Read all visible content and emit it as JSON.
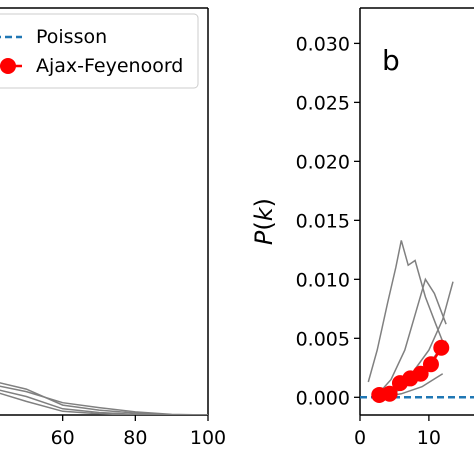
{
  "legend": {
    "items": [
      {
        "label": "Poisson",
        "style": "dashed",
        "color": "#1f77b4"
      },
      {
        "label": "Ajax-Feyenoord",
        "style": "line-marker",
        "color": "#ff0000"
      }
    ]
  },
  "chart_data": [
    {
      "type": "line",
      "panel_letter": "",
      "xlim": [
        40,
        100
      ],
      "x_ticks": [
        "60",
        "80",
        "100"
      ],
      "ylim": [
        0,
        0.033
      ],
      "y_ticks": [],
      "xlabel": "",
      "ylabel": "",
      "grid": false,
      "legend_position": "top-right",
      "series": [
        {
          "style": "gray",
          "color": "#808080",
          "x": [
            40,
            50,
            60,
            70,
            80,
            90,
            100
          ],
          "y": [
            0.0025,
            0.0019,
            0.001,
            0.0006,
            0.00025,
            5e-05,
            0.0
          ]
        },
        {
          "style": "gray",
          "color": "#808080",
          "x": [
            40,
            50,
            60,
            70,
            80,
            90,
            100
          ],
          "y": [
            0.0028,
            0.0021,
            0.0008,
            0.0004,
            0.00015,
            0.0,
            0.0
          ]
        },
        {
          "style": "gray",
          "color": "#808080",
          "x": [
            40,
            50,
            60,
            70,
            80,
            90,
            100
          ],
          "y": [
            0.0022,
            0.0015,
            0.0005,
            0.0002,
            5e-05,
            0.0,
            0.0
          ]
        },
        {
          "style": "gray",
          "color": "#808080",
          "x": [
            40,
            50,
            60,
            70,
            80,
            90,
            100
          ],
          "y": [
            0.002,
            0.0011,
            0.0003,
            0.0001,
            0.0,
            0.0,
            0.0
          ]
        }
      ]
    },
    {
      "type": "line",
      "panel_letter": "b",
      "xlim": [
        0,
        18
      ],
      "x_ticks": [
        "0",
        "10"
      ],
      "ylim": [
        -0.0015,
        0.033
      ],
      "y_ticks": [
        "0.000",
        "0.005",
        "0.010",
        "0.015",
        "0.020",
        "0.025",
        "0.030"
      ],
      "xlabel": "",
      "ylabel": "P(k)",
      "grid": false,
      "series": [
        {
          "style": "dashed",
          "color": "#1f77b4",
          "x": [
            0,
            18
          ],
          "y": [
            0,
            0
          ]
        },
        {
          "style": "gray",
          "color": "#808080",
          "x": [
            1.2,
            2.5,
            4.0,
            5.2,
            6.0,
            7.0,
            8.0,
            9.5,
            11.0,
            12.5
          ],
          "y": [
            0.0013,
            0.004,
            0.008,
            0.011,
            0.0133,
            0.0112,
            0.0116,
            0.0085,
            0.0062,
            0.004
          ]
        },
        {
          "style": "gray",
          "color": "#808080",
          "x": [
            2.5,
            4.5,
            6.5,
            8.0,
            9.5,
            10.8,
            12.5
          ],
          "y": [
            0.0002,
            0.0015,
            0.004,
            0.007,
            0.01,
            0.0088,
            0.0062
          ]
        },
        {
          "style": "gray",
          "color": "#808080",
          "x": [
            2.5,
            5.0,
            7.5,
            10.0,
            12.0,
            13.5
          ],
          "y": [
            0.0001,
            0.0006,
            0.002,
            0.004,
            0.0066,
            0.0098
          ]
        },
        {
          "style": "gray",
          "color": "#808080",
          "x": [
            2.5,
            5.0,
            7.5,
            10.0,
            12.5
          ],
          "y": [
            0.0,
            0.0004,
            0.0012,
            0.0028,
            0.0048
          ]
        },
        {
          "style": "gray",
          "color": "#808080",
          "x": [
            3.0,
            6.0,
            9.0,
            12.0
          ],
          "y": [
            0.0,
            0.0003,
            0.0009,
            0.002
          ]
        },
        {
          "style": "marker",
          "name": "Ajax-Feyenoord",
          "color": "#ff0000",
          "x": [
            2.8,
            4.3,
            5.8,
            7.3,
            8.8,
            10.3,
            11.8
          ],
          "y": [
            0.0002,
            0.0003,
            0.0012,
            0.0016,
            0.002,
            0.0028,
            0.0042
          ]
        }
      ]
    }
  ]
}
